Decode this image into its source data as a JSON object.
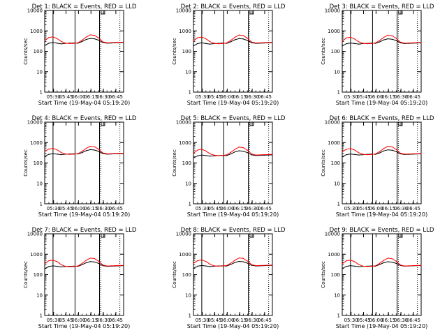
{
  "figure": {
    "y_axis_label": "Counts/sec",
    "x_axis_label": "Start Time (19-May-04 05:19:20)",
    "x_tick_labels": [
      "05:30",
      "05:45",
      "06:00",
      "06:15",
      "06:30",
      "06:45"
    ],
    "y_tick_labels": [
      "1",
      "10",
      "100",
      "1000",
      "10000"
    ]
  },
  "colors": {
    "events": "#000000",
    "lld": "#ff0000",
    "background": "#ffffff"
  },
  "chart_data": [
    {
      "type": "line",
      "title": "Det 1: BLACK = Events, RED = LLD",
      "xlabel": "Start Time (19-May-04 05:19:20)",
      "ylabel": "Counts/sec",
      "x_unit": "minutes after 05:19:20",
      "xlim": [
        0,
        95
      ],
      "ylim": [
        1,
        10000
      ],
      "y_scale": "log",
      "x": [
        0,
        5,
        10,
        15,
        20,
        25,
        30,
        35,
        40,
        45,
        50,
        55,
        60,
        65,
        70,
        75,
        80,
        85,
        90,
        95
      ],
      "series": [
        {
          "name": "Events",
          "color": "#000000",
          "values": [
            190,
            250,
            270,
            250,
            230,
            245,
            250,
            255,
            250,
            300,
            380,
            430,
            410,
            350,
            270,
            250,
            255,
            260,
            265,
            270
          ]
        },
        {
          "name": "LLD",
          "color": "#ff0000",
          "values": [
            330,
            470,
            510,
            420,
            300,
            250,
            240,
            245,
            260,
            350,
            500,
            640,
            600,
            450,
            290,
            260,
            265,
            270,
            275,
            280
          ]
        }
      ],
      "vertical_lines": {
        "x": [
          10,
          36.5,
          66
        ],
        "style": "solid"
      },
      "dotted_lines": {
        "x": [
          67.5,
          90.5
        ]
      },
      "marker_box_x": 68
    },
    {
      "type": "line",
      "title": "Det 2: BLACK = Events, RED = LLD",
      "xlabel": "Start Time (19-May-04 05:19:20)",
      "ylabel": "Counts/sec",
      "x_unit": "minutes after 05:19:20",
      "xlim": [
        0,
        95
      ],
      "ylim": [
        1,
        10000
      ],
      "y_scale": "log",
      "x": [
        0,
        5,
        10,
        15,
        20,
        25,
        30,
        35,
        40,
        45,
        50,
        55,
        60,
        65,
        70,
        75,
        80,
        85,
        90,
        95
      ],
      "series": [
        {
          "name": "Events",
          "color": "#000000",
          "values": [
            185,
            240,
            260,
            240,
            225,
            240,
            245,
            250,
            245,
            295,
            370,
            420,
            400,
            340,
            265,
            245,
            250,
            255,
            260,
            265
          ]
        },
        {
          "name": "LLD",
          "color": "#ff0000",
          "values": [
            320,
            460,
            500,
            410,
            295,
            245,
            235,
            240,
            255,
            345,
            490,
            630,
            590,
            440,
            285,
            255,
            260,
            265,
            270,
            275
          ]
        }
      ],
      "vertical_lines": {
        "x": [
          10,
          36.5,
          66
        ],
        "style": "solid"
      },
      "dotted_lines": {
        "x": [
          67.5,
          90.5
        ]
      },
      "marker_box_x": 68
    },
    {
      "type": "line",
      "title": "Det 3: BLACK = Events, RED = LLD",
      "xlabel": "Start Time (19-May-04 05:19:20)",
      "ylabel": "Counts/sec",
      "x_unit": "minutes after 05:19:20",
      "xlim": [
        0,
        95
      ],
      "ylim": [
        1,
        10000
      ],
      "y_scale": "log",
      "x": [
        0,
        5,
        10,
        15,
        20,
        25,
        30,
        35,
        40,
        45,
        50,
        55,
        60,
        65,
        70,
        75,
        80,
        85,
        90,
        95
      ],
      "series": [
        {
          "name": "Events",
          "color": "#000000",
          "values": [
            180,
            235,
            255,
            240,
            225,
            240,
            245,
            250,
            245,
            290,
            365,
            410,
            390,
            335,
            260,
            240,
            245,
            250,
            255,
            260
          ]
        },
        {
          "name": "LLD",
          "color": "#ff0000",
          "values": [
            310,
            450,
            490,
            400,
            290,
            245,
            235,
            240,
            255,
            340,
            480,
            620,
            580,
            430,
            280,
            250,
            255,
            260,
            265,
            270
          ]
        }
      ],
      "vertical_lines": {
        "x": [
          10,
          36.5,
          66
        ],
        "style": "solid"
      },
      "dotted_lines": {
        "x": [
          67.5,
          90.5
        ]
      },
      "marker_box_x": 68
    },
    {
      "type": "line",
      "title": "Det 4: BLACK = Events, RED = LLD",
      "xlabel": "Start Time (19-May-04 05:19:20)",
      "ylabel": "Counts/sec",
      "x_unit": "minutes after 05:19:20",
      "xlim": [
        0,
        95
      ],
      "ylim": [
        1,
        10000
      ],
      "y_scale": "log",
      "x": [
        0,
        5,
        10,
        15,
        20,
        25,
        30,
        35,
        40,
        45,
        50,
        55,
        60,
        65,
        70,
        75,
        80,
        85,
        90,
        95
      ],
      "series": [
        {
          "name": "Events",
          "color": "#000000",
          "values": [
            210,
            265,
            285,
            270,
            255,
            270,
            275,
            280,
            275,
            320,
            400,
            450,
            430,
            370,
            290,
            270,
            275,
            280,
            285,
            290
          ]
        },
        {
          "name": "LLD",
          "color": "#ff0000",
          "values": [
            360,
            480,
            520,
            440,
            320,
            275,
            265,
            270,
            285,
            370,
            520,
            660,
            620,
            470,
            310,
            280,
            285,
            290,
            295,
            300
          ]
        }
      ],
      "vertical_lines": {
        "x": [
          10,
          36.5,
          66
        ],
        "style": "solid"
      },
      "dotted_lines": {
        "x": [
          67.5,
          90.5
        ]
      },
      "marker_box_x": 68
    },
    {
      "type": "line",
      "title": "Det 5: BLACK = Events, RED = LLD",
      "xlabel": "Start Time (19-May-04 05:19:20)",
      "ylabel": "Counts/sec",
      "x_unit": "minutes after 05:19:20",
      "xlim": [
        0,
        95
      ],
      "ylim": [
        1,
        10000
      ],
      "y_scale": "log",
      "x": [
        0,
        5,
        10,
        15,
        20,
        25,
        30,
        35,
        40,
        45,
        50,
        55,
        60,
        65,
        70,
        75,
        80,
        85,
        90,
        95
      ],
      "series": [
        {
          "name": "Events",
          "color": "#000000",
          "values": [
            175,
            225,
            245,
            230,
            215,
            225,
            230,
            235,
            230,
            275,
            350,
            395,
            375,
            320,
            250,
            230,
            235,
            240,
            245,
            250
          ]
        },
        {
          "name": "LLD",
          "color": "#ff0000",
          "values": [
            300,
            430,
            470,
            385,
            280,
            240,
            230,
            235,
            250,
            330,
            470,
            600,
            560,
            420,
            275,
            245,
            250,
            255,
            260,
            265
          ]
        }
      ],
      "vertical_lines": {
        "x": [
          10,
          36.5,
          66
        ],
        "style": "solid"
      },
      "dotted_lines": {
        "x": [
          67.5,
          90.5
        ]
      },
      "marker_box_x": 68
    },
    {
      "type": "line",
      "title": "Det 6: BLACK = Events, RED = LLD",
      "xlabel": "Start Time (19-May-04 05:19:20)",
      "ylabel": "Counts/sec",
      "x_unit": "minutes after 05:19:20",
      "xlim": [
        0,
        95
      ],
      "ylim": [
        1,
        10000
      ],
      "y_scale": "log",
      "x": [
        0,
        5,
        10,
        15,
        20,
        25,
        30,
        35,
        40,
        45,
        50,
        55,
        60,
        65,
        70,
        75,
        80,
        85,
        90,
        95
      ],
      "series": [
        {
          "name": "Events",
          "color": "#000000",
          "values": [
            200,
            255,
            275,
            260,
            245,
            255,
            265,
            270,
            265,
            310,
            390,
            440,
            420,
            360,
            280,
            260,
            265,
            270,
            275,
            280
          ]
        },
        {
          "name": "LLD",
          "color": "#ff0000",
          "values": [
            350,
            470,
            510,
            430,
            315,
            265,
            255,
            260,
            275,
            360,
            510,
            650,
            610,
            460,
            300,
            270,
            275,
            280,
            285,
            290
          ]
        }
      ],
      "vertical_lines": {
        "x": [
          10,
          36.5,
          66
        ],
        "style": "solid"
      },
      "dotted_lines": {
        "x": [
          67.5,
          90.5
        ]
      },
      "marker_box_x": 68
    },
    {
      "type": "line",
      "title": "Det 7: BLACK = Events, RED = LLD",
      "xlabel": "Start Time (19-May-04 05:19:20)",
      "ylabel": "Counts/sec",
      "x_unit": "minutes after 05:19:20",
      "xlim": [
        0,
        95
      ],
      "ylim": [
        1,
        10000
      ],
      "y_scale": "log",
      "x": [
        0,
        5,
        10,
        15,
        20,
        25,
        30,
        35,
        40,
        45,
        50,
        55,
        60,
        65,
        70,
        75,
        80,
        85,
        90,
        95
      ],
      "series": [
        {
          "name": "Events",
          "color": "#000000",
          "values": [
            195,
            250,
            270,
            255,
            240,
            250,
            255,
            260,
            255,
            305,
            385,
            435,
            415,
            355,
            275,
            255,
            260,
            265,
            270,
            275
          ]
        },
        {
          "name": "LLD",
          "color": "#ff0000",
          "values": [
            340,
            480,
            520,
            430,
            305,
            255,
            245,
            250,
            265,
            355,
            505,
            645,
            605,
            455,
            295,
            265,
            270,
            275,
            280,
            285
          ]
        }
      ],
      "vertical_lines": {
        "x": [
          10,
          36.5,
          66
        ],
        "style": "solid"
      },
      "dotted_lines": {
        "x": [
          67.5,
          90.5
        ]
      },
      "marker_box_x": 68
    },
    {
      "type": "line",
      "title": "Det 8: BLACK = Events, RED = LLD",
      "xlabel": "Start Time (19-May-04 05:19:20)",
      "ylabel": "Counts/sec",
      "x_unit": "minutes after 05:19:20",
      "xlim": [
        0,
        95
      ],
      "ylim": [
        1,
        10000
      ],
      "y_scale": "log",
      "x": [
        0,
        5,
        10,
        15,
        20,
        25,
        30,
        35,
        40,
        45,
        50,
        55,
        60,
        65,
        70,
        75,
        80,
        85,
        90,
        95
      ],
      "series": [
        {
          "name": "Events",
          "color": "#000000",
          "values": [
            205,
            260,
            280,
            265,
            250,
            260,
            265,
            270,
            265,
            315,
            395,
            445,
            425,
            365,
            285,
            265,
            270,
            275,
            280,
            285
          ]
        },
        {
          "name": "LLD",
          "color": "#ff0000",
          "values": [
            355,
            485,
            525,
            440,
            320,
            270,
            260,
            265,
            280,
            365,
            515,
            655,
            615,
            465,
            305,
            275,
            280,
            285,
            290,
            295
          ]
        }
      ],
      "vertical_lines": {
        "x": [
          10,
          36.5,
          66
        ],
        "style": "solid"
      },
      "dotted_lines": {
        "x": [
          67.5,
          90.5
        ]
      },
      "marker_box_x": 68
    },
    {
      "type": "line",
      "title": "Det 9: BLACK = Events, RED = LLD",
      "xlabel": "Start Time (19-May-04 05:19:20)",
      "ylabel": "Counts/sec",
      "x_unit": "minutes after 05:19:20",
      "xlim": [
        0,
        95
      ],
      "ylim": [
        1,
        10000
      ],
      "y_scale": "log",
      "x": [
        0,
        5,
        10,
        15,
        20,
        25,
        30,
        35,
        40,
        45,
        50,
        55,
        60,
        65,
        70,
        75,
        80,
        85,
        90,
        95
      ],
      "series": [
        {
          "name": "Events",
          "color": "#000000",
          "values": [
            200,
            255,
            275,
            260,
            245,
            255,
            260,
            265,
            260,
            310,
            385,
            430,
            410,
            355,
            280,
            260,
            265,
            270,
            275,
            280
          ]
        },
        {
          "name": "LLD",
          "color": "#ff0000",
          "values": [
            345,
            475,
            515,
            430,
            310,
            260,
            250,
            255,
            270,
            355,
            500,
            640,
            600,
            455,
            295,
            265,
            270,
            275,
            280,
            285
          ]
        }
      ],
      "vertical_lines": {
        "x": [
          10,
          36.5,
          66
        ],
        "style": "solid"
      },
      "dotted_lines": {
        "x": [
          67.5,
          90.5
        ]
      },
      "marker_box_x": 68
    }
  ]
}
